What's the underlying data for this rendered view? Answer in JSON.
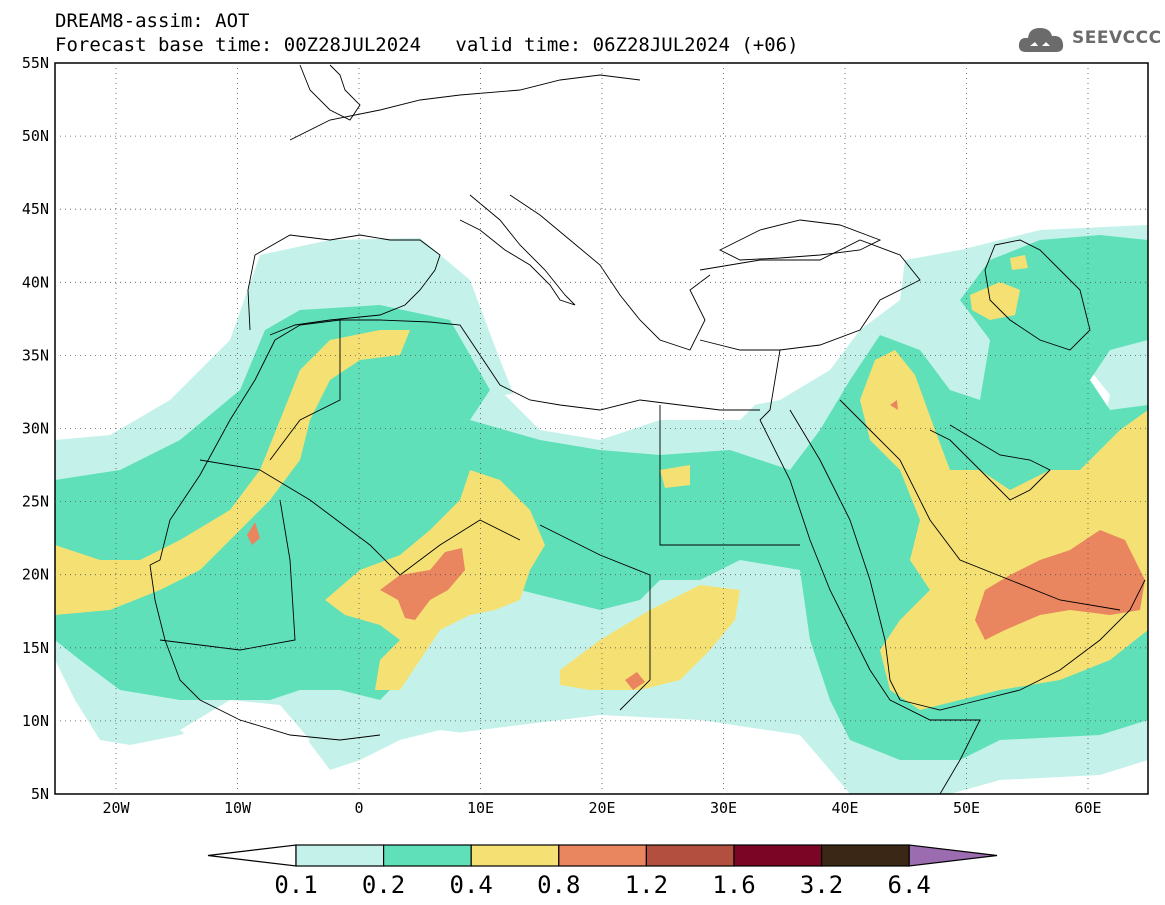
{
  "header": {
    "title": "DREAM8-assim: AOT",
    "base_time_label": "Forecast base time: 00Z28JUL2024",
    "valid_time_label": "valid time: 06Z28JUL2024 (+06)"
  },
  "logo": {
    "text": "SEEVCCC",
    "icon": "cloud-icon"
  },
  "map": {
    "lat_labels": [
      "55N",
      "50N",
      "45N",
      "40N",
      "35N",
      "30N",
      "25N",
      "20N",
      "15N",
      "10N",
      "5N"
    ],
    "lon_labels": [
      "20W",
      "10W",
      "0",
      "10E",
      "20E",
      "30E",
      "40E",
      "50E",
      "60E"
    ]
  },
  "colorbar": {
    "labels": [
      "0.1",
      "0.2",
      "0.4",
      "0.8",
      "1.2",
      "1.6",
      "3.2",
      "6.4"
    ],
    "colors": [
      "#ffffff",
      "#c4f2ea",
      "#5fe0b8",
      "#f5e173",
      "#e9855f",
      "#b24f3e",
      "#7a0524",
      "#3a2716",
      "#9b6cb0"
    ]
  },
  "colors": {
    "level1": "#c4f2ea",
    "level2": "#5fe0b8",
    "level3": "#f5e173",
    "level4": "#e9855f"
  }
}
